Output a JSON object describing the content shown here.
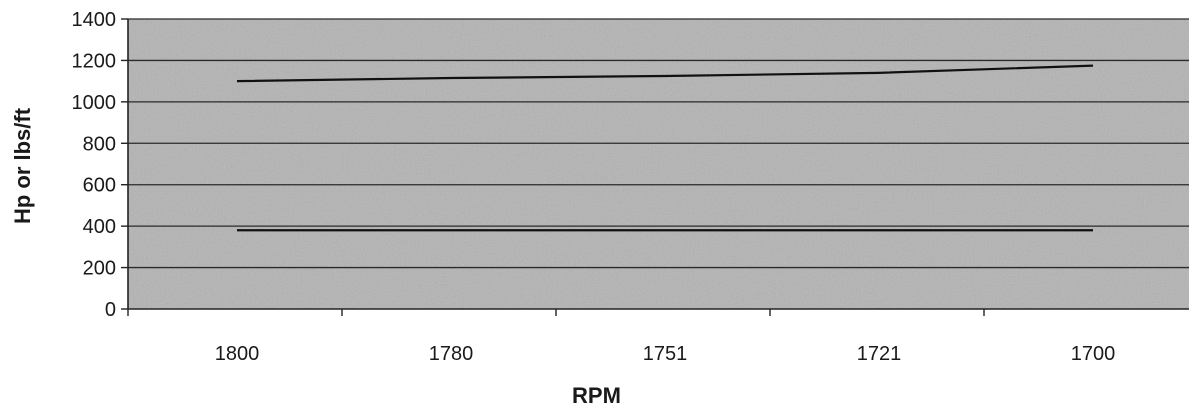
{
  "chart_data": {
    "type": "line",
    "title": "",
    "xlabel": "RPM",
    "ylabel": "Hp or lbs/ft",
    "categories": [
      "1800",
      "1780",
      "1751",
      "1721",
      "1700"
    ],
    "series": [
      {
        "values": [
          1100,
          1115,
          1125,
          1140,
          1175
        ]
      },
      {
        "values": [
          380,
          380,
          380,
          380,
          380
        ]
      }
    ],
    "ylim": [
      0,
      1400
    ],
    "yticks": [
      0,
      200,
      400,
      600,
      800,
      1000,
      1200,
      1400
    ],
    "grid": true,
    "legend": "none"
  },
  "colors": {
    "plot_background": "#b3b3b3",
    "gridline": "#2a2a2a",
    "series_line": "#111111"
  }
}
